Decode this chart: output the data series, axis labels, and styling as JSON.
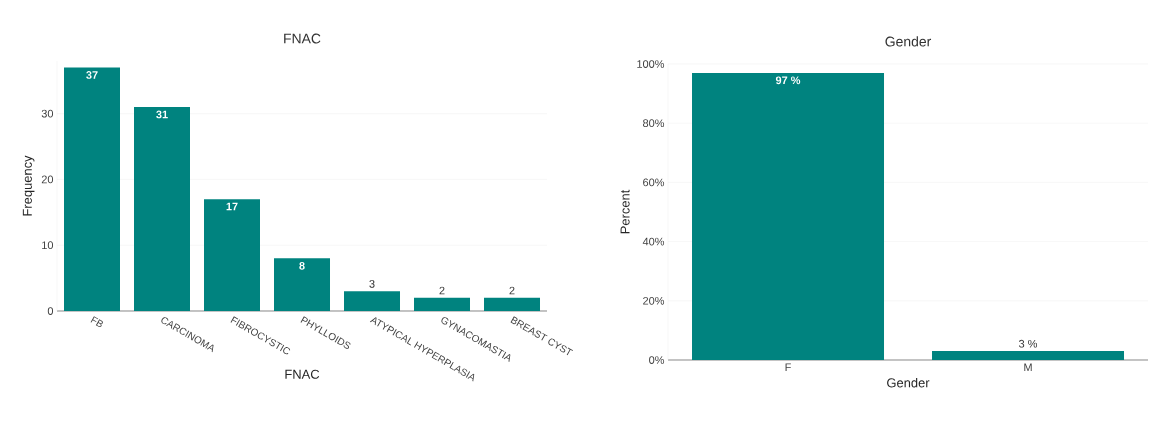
{
  "chart_data": [
    {
      "type": "bar",
      "title": "FNAC",
      "xlabel": "FNAC",
      "ylabel": "Frequency",
      "categories": [
        "FB",
        "CARCINOMA",
        "FIBROCYSTIC",
        "PHYLLOIDS",
        "ATYPICAL HYPERPLASIA",
        "GYNACOMASTIA",
        "BREAST CYST"
      ],
      "values": [
        37,
        31,
        17,
        8,
        3,
        2,
        2
      ],
      "color": "#00837f",
      "ylim": [
        0,
        38
      ],
      "yticks": [
        0,
        10,
        20,
        30
      ],
      "grid": "y",
      "data_labels": true
    },
    {
      "type": "bar",
      "title": "Gender",
      "xlabel": "Gender",
      "ylabel": "Percent",
      "categories": [
        "F",
        "M"
      ],
      "values": [
        97,
        3
      ],
      "value_labels": [
        "97 %",
        "3 %"
      ],
      "color": "#00837f",
      "ylim": [
        0,
        100
      ],
      "yticks": [
        {
          "value": 0,
          "label": "0%"
        },
        {
          "value": 20,
          "label": "20%"
        },
        {
          "value": 40,
          "label": "40%"
        },
        {
          "value": 60,
          "label": "60%"
        },
        {
          "value": 80,
          "label": "80%"
        },
        {
          "value": 100,
          "label": "100%"
        }
      ],
      "grid": "y"
    }
  ]
}
